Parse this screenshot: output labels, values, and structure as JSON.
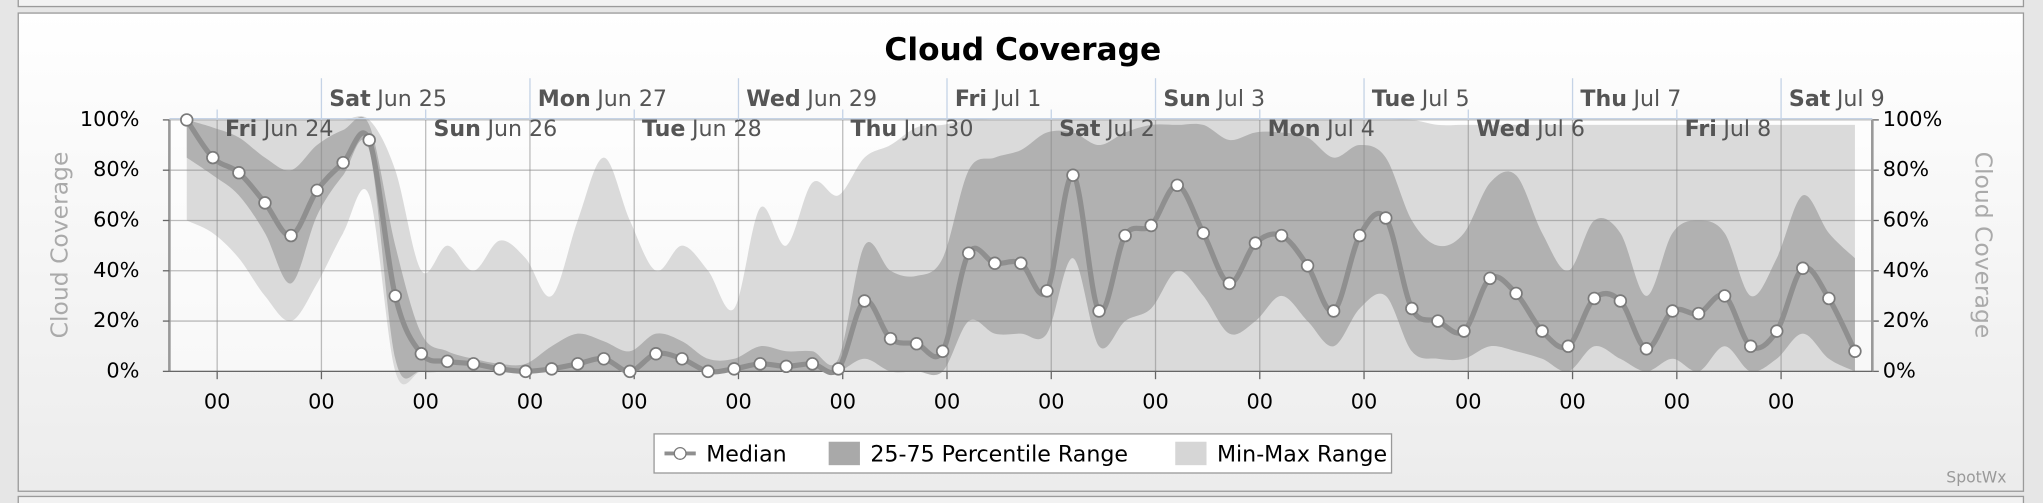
{
  "chart_data": {
    "type": "line",
    "title": "Cloud Coverage",
    "y_label": "Cloud Coverage",
    "y2_label": "Cloud Coverage",
    "watermark": "SpotWx",
    "x": [
      -7,
      -1,
      5,
      11,
      17,
      23,
      29,
      35,
      41,
      47,
      53,
      59,
      65,
      71,
      77,
      83,
      89,
      95,
      101,
      107,
      113,
      119,
      125,
      131,
      137,
      143,
      149,
      155,
      161,
      167,
      173,
      179,
      185,
      191,
      197,
      203,
      209,
      215,
      221,
      227,
      233,
      239,
      245,
      251,
      257,
      263,
      269,
      275,
      281,
      287,
      293,
      299,
      305,
      311,
      317,
      323,
      329,
      335,
      341,
      347,
      353,
      359,
      365,
      371,
      377
    ],
    "xlim": [
      -11,
      381
    ],
    "xticks": [
      {
        "value": 0,
        "label": "00"
      },
      {
        "value": 24,
        "label": "00"
      },
      {
        "value": 48,
        "label": "00"
      },
      {
        "value": 72,
        "label": "00"
      },
      {
        "value": 96,
        "label": "00"
      },
      {
        "value": 120,
        "label": "00"
      },
      {
        "value": 144,
        "label": "00"
      },
      {
        "value": 168,
        "label": "00"
      },
      {
        "value": 192,
        "label": "00"
      },
      {
        "value": 216,
        "label": "00"
      },
      {
        "value": 240,
        "label": "00"
      },
      {
        "value": 264,
        "label": "00"
      },
      {
        "value": 288,
        "label": "00"
      },
      {
        "value": 312,
        "label": "00"
      },
      {
        "value": 336,
        "label": "00"
      },
      {
        "value": 360,
        "label": "00"
      }
    ],
    "day_labels": [
      {
        "value": 0,
        "weekday": "Fri",
        "date": "Jun 24"
      },
      {
        "value": 24,
        "weekday": "Sat",
        "date": "Jun 25"
      },
      {
        "value": 48,
        "weekday": "Sun",
        "date": "Jun 26"
      },
      {
        "value": 72,
        "weekday": "Mon",
        "date": "Jun 27"
      },
      {
        "value": 96,
        "weekday": "Tue",
        "date": "Jun 28"
      },
      {
        "value": 120,
        "weekday": "Wed",
        "date": "Jun 29"
      },
      {
        "value": 144,
        "weekday": "Thu",
        "date": "Jun 30"
      },
      {
        "value": 168,
        "weekday": "Fri",
        "date": "Jul 1"
      },
      {
        "value": 192,
        "weekday": "Sat",
        "date": "Jul 2"
      },
      {
        "value": 216,
        "weekday": "Sun",
        "date": "Jul 3"
      },
      {
        "value": 240,
        "weekday": "Mon",
        "date": "Jul 4"
      },
      {
        "value": 264,
        "weekday": "Tue",
        "date": "Jul 5"
      },
      {
        "value": 288,
        "weekday": "Wed",
        "date": "Jul 6"
      },
      {
        "value": 312,
        "weekday": "Thu",
        "date": "Jul 7"
      },
      {
        "value": 336,
        "weekday": "Fri",
        "date": "Jul 8"
      },
      {
        "value": 360,
        "weekday": "Sat",
        "date": "Jul 9"
      }
    ],
    "ylim": [
      0,
      100
    ],
    "yticks": [
      {
        "value": 0,
        "label": "0%"
      },
      {
        "value": 20,
        "label": "20%"
      },
      {
        "value": 40,
        "label": "40%"
      },
      {
        "value": 60,
        "label": "60%"
      },
      {
        "value": 80,
        "label": "80%"
      },
      {
        "value": 100,
        "label": "100%"
      }
    ],
    "y2lim": [
      0,
      100
    ],
    "y2ticks": [
      {
        "value": 0,
        "label": "0%"
      },
      {
        "value": 20,
        "label": "20%"
      },
      {
        "value": 40,
        "label": "40%"
      },
      {
        "value": 60,
        "label": "60%"
      },
      {
        "value": 80,
        "label": "80%"
      },
      {
        "value": 100,
        "label": "100%"
      }
    ],
    "grid": true,
    "series": [
      {
        "name": "Median",
        "color": "#8f8f8f",
        "values": [
          100,
          85,
          79,
          67,
          54,
          72,
          83,
          92,
          30,
          7,
          4,
          3,
          1,
          0,
          1,
          3,
          5,
          0,
          7,
          5,
          0,
          1,
          3,
          2,
          3,
          1,
          28,
          13,
          11,
          8,
          47,
          43,
          43,
          32,
          78,
          24,
          54,
          58,
          74,
          55,
          35,
          51,
          54,
          42,
          24,
          54,
          61,
          25,
          20,
          16,
          37,
          31,
          16,
          10,
          29,
          28,
          9,
          24,
          23,
          30,
          10,
          16,
          41,
          29,
          8
        ]
      },
      {
        "name": "25-75 Percentile Range",
        "color": "#a9a9a9",
        "low": [
          85,
          78,
          70,
          55,
          35,
          62,
          78,
          88,
          5,
          0,
          0,
          0,
          0,
          0,
          0,
          0,
          0,
          0,
          0,
          0,
          0,
          0,
          0,
          0,
          0,
          0,
          5,
          0,
          0,
          0,
          20,
          15,
          15,
          15,
          45,
          10,
          20,
          25,
          40,
          30,
          15,
          20,
          30,
          20,
          10,
          25,
          30,
          8,
          5,
          5,
          10,
          8,
          5,
          0,
          10,
          5,
          0,
          5,
          0,
          10,
          0,
          5,
          15,
          5,
          0
        ],
        "high": [
          100,
          97,
          93,
          85,
          80,
          90,
          96,
          98,
          50,
          15,
          8,
          5,
          3,
          3,
          10,
          15,
          12,
          8,
          15,
          12,
          5,
          5,
          10,
          8,
          8,
          5,
          50,
          40,
          38,
          45,
          80,
          85,
          88,
          95,
          95,
          90,
          95,
          98,
          98,
          98,
          92,
          95,
          95,
          93,
          85,
          90,
          85,
          60,
          50,
          55,
          75,
          78,
          55,
          40,
          60,
          55,
          30,
          55,
          60,
          55,
          30,
          45,
          70,
          55,
          45
        ]
      },
      {
        "name": "Min-Max Range",
        "color": "#d6d6d6",
        "low": [
          60,
          55,
          45,
          30,
          20,
          35,
          55,
          70,
          0,
          0,
          0,
          0,
          0,
          0,
          0,
          0,
          0,
          0,
          0,
          0,
          0,
          0,
          0,
          0,
          0,
          0,
          0,
          0,
          0,
          0,
          0,
          0,
          0,
          0,
          0,
          0,
          0,
          0,
          0,
          0,
          0,
          0,
          0,
          0,
          0,
          0,
          0,
          0,
          0,
          0,
          0,
          0,
          0,
          0,
          0,
          0,
          0,
          0,
          0,
          0,
          0,
          0,
          0,
          0,
          0
        ],
        "high": [
          100,
          100,
          100,
          100,
          100,
          100,
          100,
          100,
          80,
          40,
          50,
          40,
          52,
          45,
          30,
          60,
          85,
          60,
          40,
          50,
          40,
          25,
          65,
          50,
          75,
          70,
          85,
          90,
          97,
          98,
          100,
          100,
          100,
          100,
          100,
          100,
          100,
          100,
          100,
          100,
          100,
          100,
          100,
          100,
          100,
          100,
          100,
          100,
          98,
          98,
          98,
          98,
          98,
          98,
          98,
          98,
          98,
          98,
          98,
          98,
          98,
          98,
          98,
          98,
          98
        ]
      }
    ]
  }
}
